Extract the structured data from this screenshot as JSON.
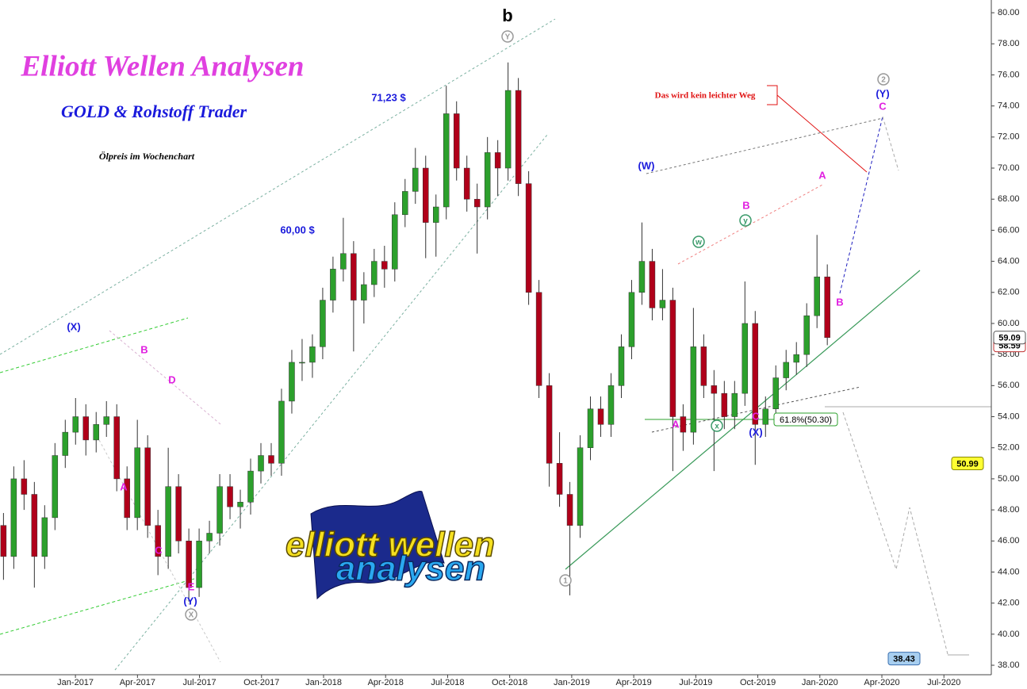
{
  "chart_data": {
    "type": "candlestick",
    "title": "Elliott Wellen Analysen",
    "subtitle": "GOLD & Rohstoff Trader",
    "caption": "Ölpreis im Wochenchart",
    "logo": [
      "elliott wellen",
      "analysen"
    ],
    "up_color": "#2ca02c",
    "down_color": "#b0001a",
    "x": [
      2016.71,
      2016.7515,
      2016.793,
      2016.8345,
      2016.876,
      2016.9175,
      2016.959,
      2017.0005,
      2017.042,
      2017.0835,
      2017.125,
      2017.1665,
      2017.208,
      2017.2495,
      2017.291,
      2017.3325,
      2017.374,
      2017.4155,
      2017.457,
      2017.4985,
      2017.54,
      2017.5815,
      2017.623,
      2017.6645,
      2017.706,
      2017.7475,
      2017.789,
      2017.8305,
      2017.872,
      2017.9135,
      2017.955,
      2017.9965,
      2018.038,
      2018.0795,
      2018.121,
      2018.1625,
      2018.204,
      2018.2455,
      2018.287,
      2018.3285,
      2018.37,
      2018.4115,
      2018.453,
      2018.4945,
      2018.536,
      2018.5775,
      2018.619,
      2018.6605,
      2018.702,
      2018.7435,
      2018.785,
      2018.8265,
      2018.868,
      2018.9095,
      2018.951,
      2018.9925,
      2019.034,
      2019.0755,
      2019.117,
      2019.1585,
      2019.2,
      2019.2415,
      2019.283,
      2019.3245,
      2019.366,
      2019.4075,
      2019.449,
      2019.4905,
      2019.532,
      2019.5735,
      2019.615,
      2019.6565,
      2019.698,
      2019.7395,
      2019.781,
      2019.8225,
      2019.864,
      2019.9055,
      2019.947,
      2019.9885,
      2020.03
    ],
    "open": [
      47,
      45,
      50,
      49,
      45,
      47.5,
      51.5,
      53,
      54,
      52.5,
      53.5,
      54,
      50,
      47.5,
      52,
      47,
      45,
      49.5,
      46,
      43,
      46,
      46.5,
      49.5,
      48.2,
      48.5,
      50.5,
      51.5,
      51,
      55,
      57.5,
      57.5,
      58.5,
      61.5,
      63.5,
      64.5,
      61.5,
      62.5,
      64,
      63.5,
      67,
      68.5,
      70,
      66.5,
      67.5,
      73.5,
      70,
      68,
      67.5,
      71,
      70,
      75,
      69,
      62,
      56,
      51,
      49,
      47,
      52,
      54.5,
      53.5,
      56,
      58.5,
      62,
      64,
      61,
      61.5,
      54,
      53,
      58.5,
      56,
      55.5,
      54,
      55.5,
      60,
      53.5,
      54.5,
      56.5,
      57.5,
      58,
      60.5,
      63
    ],
    "high": [
      47.8,
      50.8,
      51.2,
      49.8,
      48.3,
      52.3,
      53.8,
      55.2,
      54.8,
      54.3,
      55,
      54.8,
      50.8,
      53.8,
      52.8,
      48,
      52,
      50.3,
      46.8,
      46.8,
      47.3,
      50.3,
      50.3,
      49.3,
      51.3,
      52.3,
      52.3,
      55.8,
      58.3,
      59,
      59.3,
      62.3,
      64.3,
      66.8,
      65.3,
      63.3,
      64.8,
      65,
      67.8,
      69.3,
      71.3,
      70.8,
      68.3,
      75.3,
      74.3,
      70.8,
      69,
      72,
      71.8,
      76.8,
      75.8,
      69.8,
      62.8,
      56.8,
      53,
      49.8,
      52.8,
      55.3,
      55.3,
      56.8,
      59.3,
      62.8,
      66.5,
      64.8,
      63.5,
      62.3,
      54.8,
      61,
      59.3,
      57,
      56.3,
      56.3,
      62.7,
      60.8,
      55.3,
      57.3,
      58.3,
      58.8,
      61.3,
      65.7,
      63.8
    ],
    "low": [
      43.5,
      44.2,
      48,
      43,
      44.2,
      46.7,
      50.7,
      52.2,
      51.5,
      51.7,
      52.7,
      49.2,
      46.7,
      46.7,
      46.2,
      43.8,
      44.2,
      45.2,
      42.1,
      42.4,
      45.2,
      45.7,
      47.4,
      46.8,
      47.7,
      49.7,
      50.2,
      50.2,
      54.2,
      56.3,
      56.5,
      57.7,
      60.7,
      62.7,
      58.2,
      60,
      61.7,
      62.3,
      62.7,
      66.2,
      67.7,
      64.2,
      64.3,
      66.7,
      69.2,
      67.2,
      64.5,
      66.7,
      68.2,
      69.2,
      68.2,
      61.2,
      55.2,
      49.5,
      48.2,
      42.5,
      46.2,
      51.2,
      52.7,
      52.7,
      55.2,
      57.7,
      61.2,
      60.2,
      60.2,
      50.5,
      51.8,
      52.2,
      55.2,
      50.5,
      53.2,
      53.2,
      54.7,
      50.9,
      52.7,
      53.7,
      55.7,
      56.7,
      57.2,
      59.7,
      58.6
    ],
    "close": [
      45,
      50,
      49,
      45,
      47.5,
      51.5,
      53,
      54,
      52.5,
      53.5,
      54,
      50,
      47.5,
      52,
      47,
      45,
      49.5,
      46,
      43,
      46,
      46.5,
      49.5,
      48.2,
      48.5,
      50.5,
      51.5,
      51,
      55,
      57.5,
      57.5,
      58.5,
      61.5,
      63.5,
      64.5,
      61.5,
      62.5,
      64,
      63.5,
      67,
      68.5,
      70,
      66.5,
      67.5,
      73.5,
      70,
      68,
      67.5,
      71,
      70,
      75,
      69,
      62,
      56,
      51,
      49,
      47,
      52,
      54.5,
      53.5,
      56,
      58.5,
      62,
      64,
      61,
      61.5,
      54,
      53,
      58.5,
      56,
      55.5,
      54,
      55.5,
      60,
      53.5,
      54.5,
      56.5,
      57.5,
      58,
      60.5,
      63,
      59.09
    ],
    "xlim": [
      2016.696,
      2020.691
    ],
    "ylim": [
      37.39,
      80.82
    ],
    "xticks": [
      {
        "value": 2017,
        "label": "Jan-2017"
      },
      {
        "value": 2017.25,
        "label": "Apr-2017"
      },
      {
        "value": 2017.5,
        "label": "Jul-2017"
      },
      {
        "value": 2017.75,
        "label": "Oct-2017"
      },
      {
        "value": 2018,
        "label": "Jan-2018"
      },
      {
        "value": 2018.25,
        "label": "Apr-2018"
      },
      {
        "value": 2018.5,
        "label": "Jul-2018"
      },
      {
        "value": 2018.75,
        "label": "Oct-2018"
      },
      {
        "value": 2019,
        "label": "Jan-2019"
      },
      {
        "value": 2019.25,
        "label": "Apr-2019"
      },
      {
        "value": 2019.5,
        "label": "Jul-2019"
      },
      {
        "value": 2019.75,
        "label": "Oct-2019"
      },
      {
        "value": 2020,
        "label": "Jan-2020"
      },
      {
        "value": 2020.25,
        "label": "Apr-2020"
      },
      {
        "value": 2020.5,
        "label": "Jul-2020"
      }
    ],
    "yticks": [
      {
        "value": 38,
        "label": "38.00"
      },
      {
        "value": 40,
        "label": "40.00"
      },
      {
        "value": 42,
        "label": "42.00"
      },
      {
        "value": 44,
        "label": "44.00"
      },
      {
        "value": 46,
        "label": "46.00"
      },
      {
        "value": 48,
        "label": "48.00"
      },
      {
        "value": 50,
        "label": "50.00"
      },
      {
        "value": 52,
        "label": "52.00"
      },
      {
        "value": 54,
        "label": "54.00"
      },
      {
        "value": 56,
        "label": "56.00"
      },
      {
        "value": 58,
        "label": "58.00"
      },
      {
        "value": 60,
        "label": "60.00"
      },
      {
        "value": 62,
        "label": "62.00"
      },
      {
        "value": 64,
        "label": "64.00"
      },
      {
        "value": 66,
        "label": "66.00"
      },
      {
        "value": 68,
        "label": "68.00"
      },
      {
        "value": 70,
        "label": "70.00"
      },
      {
        "value": 72,
        "label": "72.00"
      },
      {
        "value": 74,
        "label": "74.00"
      },
      {
        "value": 76,
        "label": "76.00"
      },
      {
        "value": 78,
        "label": "78.00"
      },
      {
        "value": 80,
        "label": "80.00"
      }
    ],
    "price_labels": [
      {
        "value": 58.59,
        "label": "58.59",
        "color": "#ffffff",
        "border": "#c03030"
      },
      {
        "value": 59.09,
        "label": "59.09",
        "color": "#ffffff",
        "border": "#555555"
      },
      {
        "value": 50.99,
        "label": "50.99",
        "color": "#ffff33",
        "border": "#888800"
      },
      {
        "value": 38.43,
        "label": "38.43",
        "color": "#a8cff0",
        "border": "#3a6fb0"
      }
    ],
    "annotations": [
      {
        "text": "b",
        "color": "#000000"
      },
      {
        "text": "Y",
        "color": "#999999",
        "circled": true
      },
      {
        "text": "71,23 $",
        "color": "#1a1adc"
      },
      {
        "text": "60,00 $",
        "color": "#1a1adc"
      },
      {
        "text": "(X)",
        "color": "#1a1adc"
      },
      {
        "text": "B",
        "color": "#e020e0"
      },
      {
        "text": "D",
        "color": "#e020e0"
      },
      {
        "text": "A",
        "color": "#e020e0"
      },
      {
        "text": "C",
        "color": "#e020e0"
      },
      {
        "text": "E",
        "color": "#e020e0"
      },
      {
        "text": "(Y)",
        "color": "#1a1adc"
      },
      {
        "text": "X",
        "color": "#999999",
        "circled": true
      },
      {
        "text": "1",
        "color": "#999999",
        "circled": true
      },
      {
        "text": "(W)",
        "color": "#1a1adc"
      },
      {
        "text": "A",
        "color": "#e020e0"
      },
      {
        "text": "w",
        "color": "#3a9a6a",
        "circled": true
      },
      {
        "text": "x",
        "color": "#3a9a6a",
        "circled": true
      },
      {
        "text": "y",
        "color": "#3a9a6a",
        "circled": true
      },
      {
        "text": "B",
        "color": "#e020e0"
      },
      {
        "text": "C",
        "color": "#e020e0"
      },
      {
        "text": "(X)",
        "color": "#1a1adc"
      },
      {
        "text": "A",
        "color": "#e020e0"
      },
      {
        "text": "B",
        "color": "#e020e0"
      },
      {
        "text": "2",
        "color": "#999999",
        "circled": true
      },
      {
        "text": "(Y)",
        "color": "#1a1adc"
      },
      {
        "text": "C",
        "color": "#e020e0"
      },
      {
        "text": "Das wird kein leichter Weg",
        "color": "#e01010"
      },
      {
        "text": "61.8%(50.30)",
        "color": "#000000",
        "boxed": "#2ca02c"
      }
    ]
  }
}
